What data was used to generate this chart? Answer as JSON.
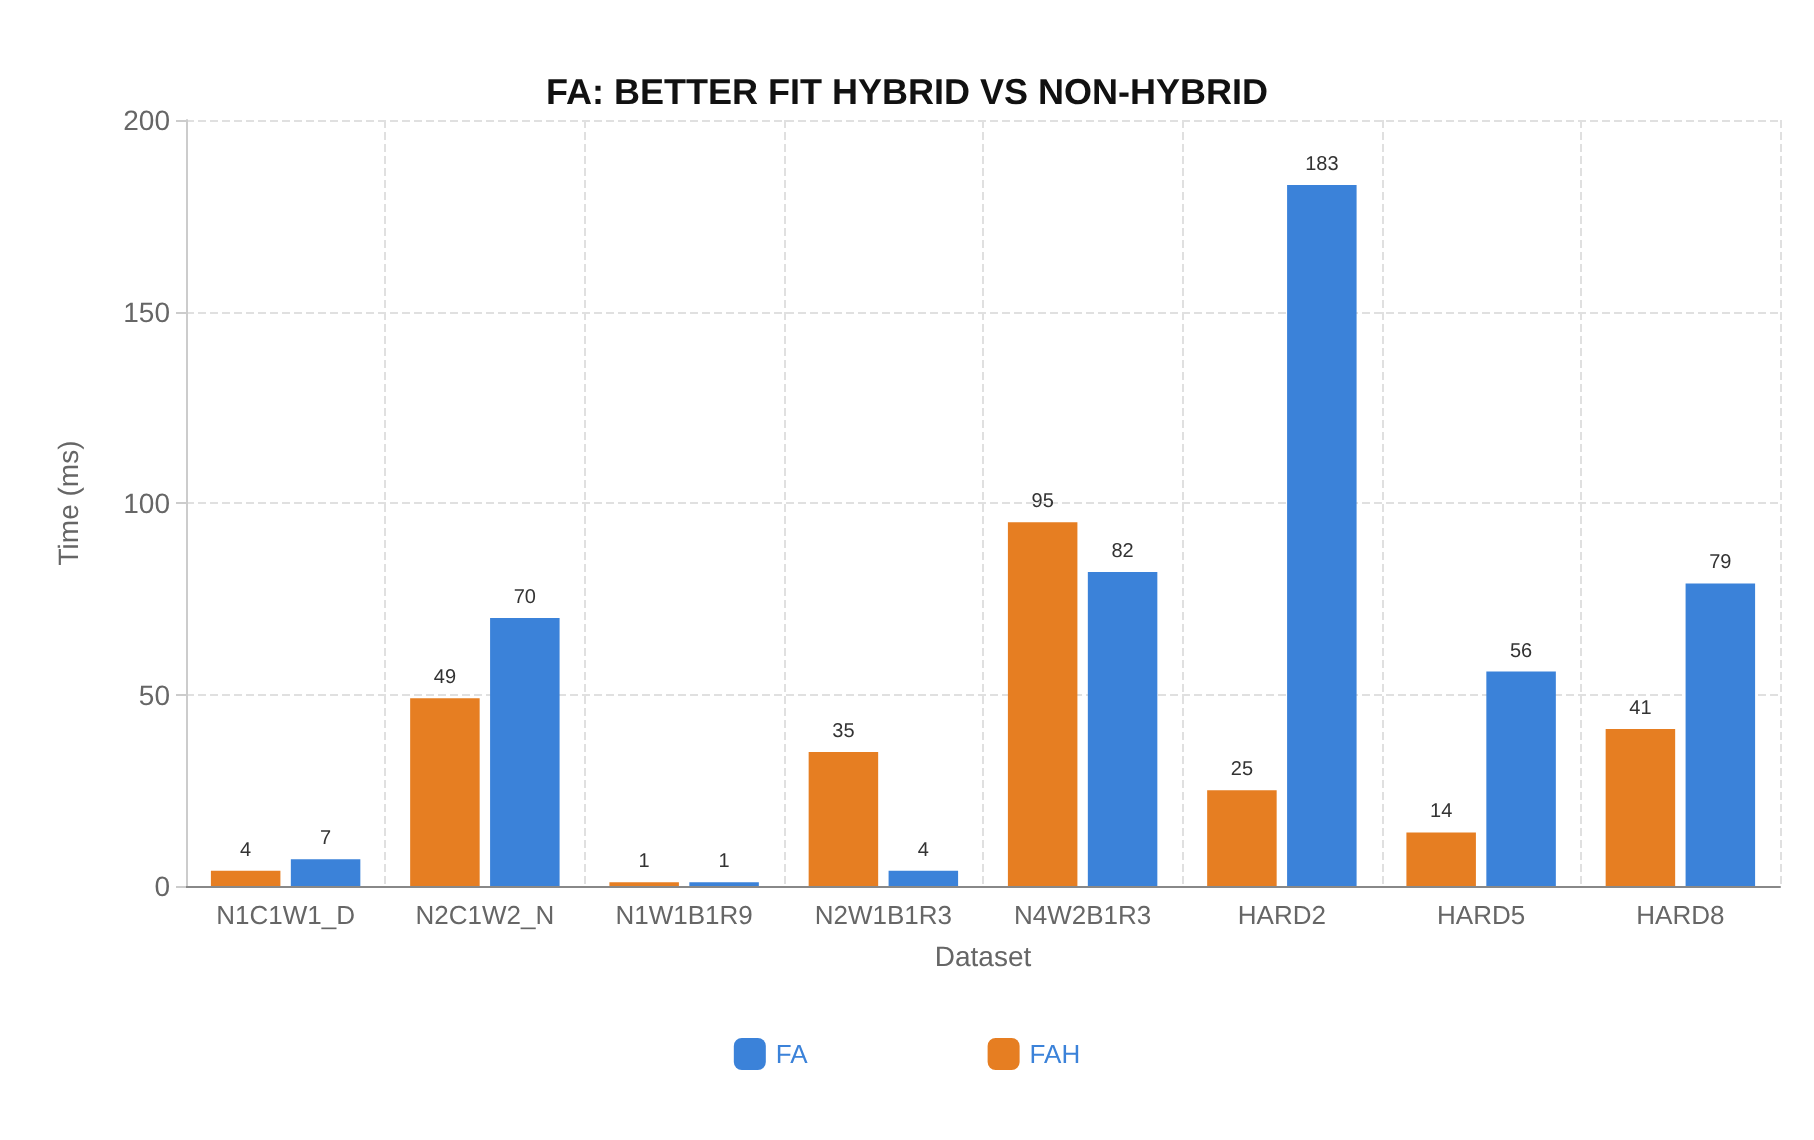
{
  "chart_data": {
    "type": "bar",
    "title": "FA: BETTER FIT HYBRID VS NON-HYBRID",
    "xlabel": "Dataset",
    "ylabel": "Time (ms)",
    "categories": [
      "N1C1W1_D",
      "N2C1W2_N",
      "N1W1B1R9",
      "N2W1B1R3",
      "N4W2B1R3",
      "HARD2",
      "HARD5",
      "HARD8"
    ],
    "series": [
      {
        "name": "FAH",
        "color": "#e67e22",
        "values": [
          4,
          49,
          1,
          35,
          95,
          25,
          14,
          41
        ]
      },
      {
        "name": "FA",
        "color": "#3b82d9",
        "values": [
          7,
          70,
          1,
          4,
          82,
          183,
          56,
          79
        ]
      }
    ],
    "ylim": [
      0,
      200
    ],
    "yticks": [
      0,
      50,
      100,
      150,
      200
    ],
    "grid": true,
    "legend": "bottom",
    "data_labels": true
  }
}
